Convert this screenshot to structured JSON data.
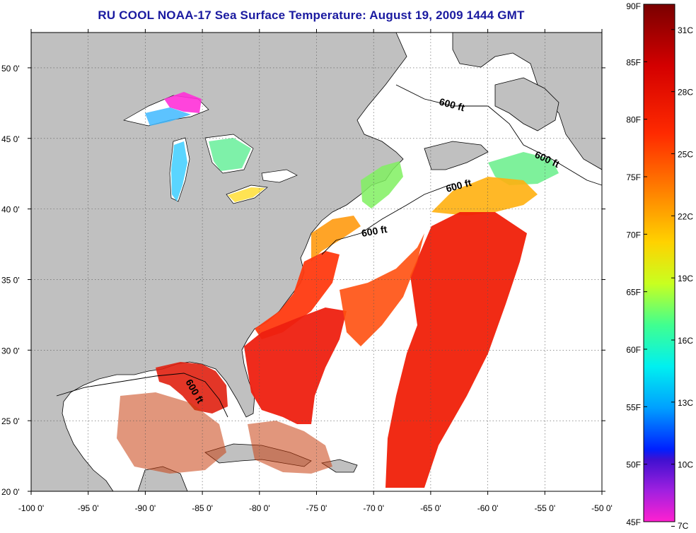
{
  "title": "RU COOL  NOAA-17  Sea Surface Temperature:  August 19, 2009 1444 GMT",
  "axes": {
    "lon_ticks": [
      "-100 0'",
      "-95 0'",
      "-90 0'",
      "-85 0'",
      "-80 0'",
      "-75 0'",
      "-70 0'",
      "-65 0'",
      "-60 0'",
      "-55 0'",
      "-50 0'"
    ],
    "lat_ticks": [
      "50 0'",
      "45 0'",
      "40 0'",
      "35 0'",
      "30 0'",
      "25 0'",
      "20 0'"
    ],
    "lon_range": [
      -100,
      -50
    ],
    "lat_range": [
      20,
      52.5
    ],
    "grid": true
  },
  "isobath_label": "600 ft",
  "colorbar": {
    "fahrenheit_labels": [
      "90F",
      "85F",
      "80F",
      "75F",
      "70F",
      "65F",
      "60F",
      "55F",
      "50F",
      "45F"
    ],
    "celsius_labels": [
      "31C",
      "28C",
      "25C",
      "22C",
      "19C",
      "16C",
      "13C",
      "10C",
      "7C"
    ],
    "range_F": [
      45,
      90
    ]
  },
  "colors": {
    "land": "#c0c0c0",
    "ocean_nodata": "#ffffff",
    "title": "#1a1aa0"
  }
}
